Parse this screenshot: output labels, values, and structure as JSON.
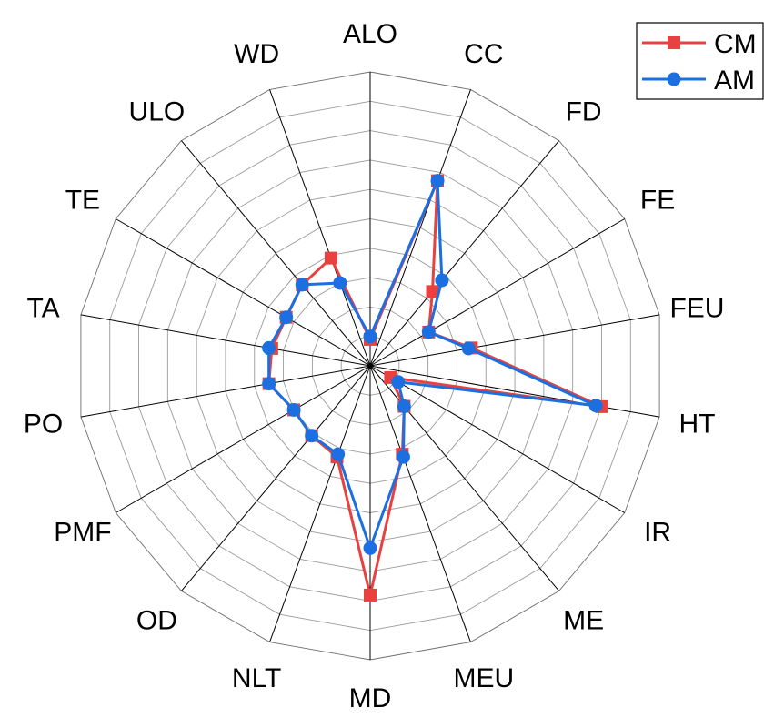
{
  "chart_data": {
    "type": "radar",
    "categories": [
      "ALO",
      "CC",
      "FD",
      "FE",
      "FEU",
      "HT",
      "IR",
      "ME",
      "MEU",
      "MD",
      "NLT",
      "OD",
      "PMF",
      "PO",
      "TA",
      "TE",
      "ULO",
      "WD"
    ],
    "series": [
      {
        "name": "CM",
        "color": "#e8413f",
        "marker": "square",
        "values": [
          0.9,
          6.7,
          3.3,
          2.3,
          3.5,
          8.0,
          0.8,
          1.8,
          3.2,
          7.8,
          3.3,
          3.1,
          3.0,
          3.5,
          3.4,
          3.3,
          3.6,
          3.9
        ]
      },
      {
        "name": "AM",
        "color": "#1b6fe0",
        "marker": "circle",
        "values": [
          1.0,
          6.7,
          3.8,
          2.3,
          3.4,
          7.8,
          1.1,
          1.8,
          3.3,
          6.2,
          3.2,
          3.1,
          3.0,
          3.5,
          3.5,
          3.3,
          3.6,
          3.0
        ]
      }
    ],
    "rmax": 10,
    "rings": 10,
    "grid": true,
    "legend_position": "top-right"
  }
}
